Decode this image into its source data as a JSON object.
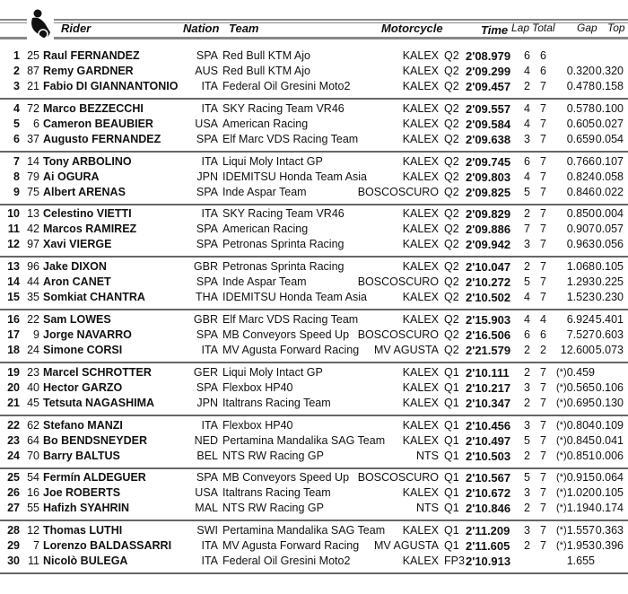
{
  "header": {
    "rider": "Rider",
    "nation": "Nation",
    "team": "Team",
    "motorcycle": "Motorcycle",
    "time": "Time",
    "lap": "Lap",
    "total": "Total",
    "gap": "Gap",
    "top": "Top",
    "logo_icon": "motorcycle-rider-icon"
  },
  "rows": [
    {
      "pos": "1",
      "num": "25",
      "name": "Raul FERNANDEZ",
      "nation": "SPA",
      "team": "Red Bull KTM Ajo",
      "moto": "KALEX",
      "session": "Q2",
      "time": "2'08.979",
      "lap": "6",
      "total": "6",
      "star": "",
      "gap": "",
      "top": ""
    },
    {
      "pos": "2",
      "num": "87",
      "name": "Remy GARDNER",
      "nation": "AUS",
      "team": "Red Bull KTM Ajo",
      "moto": "KALEX",
      "session": "Q2",
      "time": "2'09.299",
      "lap": "4",
      "total": "6",
      "star": "",
      "gap": "0.320",
      "top": "0.320"
    },
    {
      "pos": "3",
      "num": "21",
      "name": "Fabio DI GIANNANTONIO",
      "nation": "ITA",
      "team": "Federal Oil Gresini Moto2",
      "moto": "KALEX",
      "session": "Q2",
      "time": "2'09.457",
      "lap": "2",
      "total": "7",
      "star": "",
      "gap": "0.478",
      "top": "0.158"
    },
    {
      "pos": "4",
      "num": "72",
      "name": "Marco BEZZECCHI",
      "nation": "ITA",
      "team": "SKY Racing Team VR46",
      "moto": "KALEX",
      "session": "Q2",
      "time": "2'09.557",
      "lap": "4",
      "total": "7",
      "star": "",
      "gap": "0.578",
      "top": "0.100"
    },
    {
      "pos": "5",
      "num": "6",
      "name": "Cameron BEAUBIER",
      "nation": "USA",
      "team": "American Racing",
      "moto": "KALEX",
      "session": "Q2",
      "time": "2'09.584",
      "lap": "4",
      "total": "7",
      "star": "",
      "gap": "0.605",
      "top": "0.027"
    },
    {
      "pos": "6",
      "num": "37",
      "name": "Augusto FERNANDEZ",
      "nation": "SPA",
      "team": "Elf Marc VDS Racing Team",
      "moto": "KALEX",
      "session": "Q2",
      "time": "2'09.638",
      "lap": "3",
      "total": "7",
      "star": "",
      "gap": "0.659",
      "top": "0.054"
    },
    {
      "pos": "7",
      "num": "14",
      "name": "Tony ARBOLINO",
      "nation": "ITA",
      "team": "Liqui Moly Intact GP",
      "moto": "KALEX",
      "session": "Q2",
      "time": "2'09.745",
      "lap": "6",
      "total": "7",
      "star": "",
      "gap": "0.766",
      "top": "0.107"
    },
    {
      "pos": "8",
      "num": "79",
      "name": "Ai OGURA",
      "nation": "JPN",
      "team": "IDEMITSU Honda Team Asia",
      "moto": "KALEX",
      "session": "Q2",
      "time": "2'09.803",
      "lap": "4",
      "total": "7",
      "star": "",
      "gap": "0.824",
      "top": "0.058"
    },
    {
      "pos": "9",
      "num": "75",
      "name": "Albert ARENAS",
      "nation": "SPA",
      "team": "Inde Aspar Team",
      "moto": "BOSCOSCURO",
      "session": "Q2",
      "time": "2'09.825",
      "lap": "5",
      "total": "7",
      "star": "",
      "gap": "0.846",
      "top": "0.022"
    },
    {
      "pos": "10",
      "num": "13",
      "name": "Celestino VIETTI",
      "nation": "ITA",
      "team": "SKY Racing Team VR46",
      "moto": "KALEX",
      "session": "Q2",
      "time": "2'09.829",
      "lap": "2",
      "total": "7",
      "star": "",
      "gap": "0.850",
      "top": "0.004"
    },
    {
      "pos": "11",
      "num": "42",
      "name": "Marcos RAMIREZ",
      "nation": "SPA",
      "team": "American Racing",
      "moto": "KALEX",
      "session": "Q2",
      "time": "2'09.886",
      "lap": "7",
      "total": "7",
      "star": "",
      "gap": "0.907",
      "top": "0.057"
    },
    {
      "pos": "12",
      "num": "97",
      "name": "Xavi VIERGE",
      "nation": "SPA",
      "team": "Petronas Sprinta Racing",
      "moto": "KALEX",
      "session": "Q2",
      "time": "2'09.942",
      "lap": "3",
      "total": "7",
      "star": "",
      "gap": "0.963",
      "top": "0.056"
    },
    {
      "pos": "13",
      "num": "96",
      "name": "Jake DIXON",
      "nation": "GBR",
      "team": "Petronas Sprinta Racing",
      "moto": "KALEX",
      "session": "Q2",
      "time": "2'10.047",
      "lap": "2",
      "total": "7",
      "star": "",
      "gap": "1.068",
      "top": "0.105"
    },
    {
      "pos": "14",
      "num": "44",
      "name": "Aron CANET",
      "nation": "SPA",
      "team": "Inde Aspar Team",
      "moto": "BOSCOSCURO",
      "session": "Q2",
      "time": "2'10.272",
      "lap": "5",
      "total": "7",
      "star": "",
      "gap": "1.293",
      "top": "0.225"
    },
    {
      "pos": "15",
      "num": "35",
      "name": "Somkiat CHANTRA",
      "nation": "THA",
      "team": "IDEMITSU Honda Team Asia",
      "moto": "KALEX",
      "session": "Q2",
      "time": "2'10.502",
      "lap": "4",
      "total": "7",
      "star": "",
      "gap": "1.523",
      "top": "0.230"
    },
    {
      "pos": "16",
      "num": "22",
      "name": "Sam LOWES",
      "nation": "GBR",
      "team": "Elf Marc VDS Racing Team",
      "moto": "KALEX",
      "session": "Q2",
      "time": "2'15.903",
      "lap": "4",
      "total": "4",
      "star": "",
      "gap": "6.924",
      "top": "5.401"
    },
    {
      "pos": "17",
      "num": "9",
      "name": "Jorge NAVARRO",
      "nation": "SPA",
      "team": "MB Conveyors Speed Up",
      "moto": "BOSCOSCURO",
      "session": "Q2",
      "time": "2'16.506",
      "lap": "6",
      "total": "6",
      "star": "",
      "gap": "7.527",
      "top": "0.603"
    },
    {
      "pos": "18",
      "num": "24",
      "name": "Simone CORSI",
      "nation": "ITA",
      "team": "MV Agusta Forward Racing",
      "moto": "MV AGUSTA",
      "session": "Q2",
      "time": "2'21.579",
      "lap": "2",
      "total": "2",
      "star": "",
      "gap": "12.600",
      "top": "5.073"
    },
    {
      "pos": "19",
      "num": "23",
      "name": "Marcel SCHROTTER",
      "nation": "GER",
      "team": "Liqui Moly Intact GP",
      "moto": "KALEX",
      "session": "Q1",
      "time": "2'10.111",
      "lap": "2",
      "total": "7",
      "star": "(*)",
      "gap": "0.459",
      "top": ""
    },
    {
      "pos": "20",
      "num": "40",
      "name": "Hector GARZO",
      "nation": "SPA",
      "team": "Flexbox HP40",
      "moto": "KALEX",
      "session": "Q1",
      "time": "2'10.217",
      "lap": "3",
      "total": "7",
      "star": "(*)",
      "gap": "0.565",
      "top": "0.106"
    },
    {
      "pos": "21",
      "num": "45",
      "name": "Tetsuta NAGASHIMA",
      "nation": "JPN",
      "team": "Italtrans Racing Team",
      "moto": "KALEX",
      "session": "Q1",
      "time": "2'10.347",
      "lap": "2",
      "total": "7",
      "star": "(*)",
      "gap": "0.695",
      "top": "0.130"
    },
    {
      "pos": "22",
      "num": "62",
      "name": "Stefano MANZI",
      "nation": "ITA",
      "team": "Flexbox HP40",
      "moto": "KALEX",
      "session": "Q1",
      "time": "2'10.456",
      "lap": "3",
      "total": "7",
      "star": "(*)",
      "gap": "0.804",
      "top": "0.109"
    },
    {
      "pos": "23",
      "num": "64",
      "name": "Bo BENDSNEYDER",
      "nation": "NED",
      "team": "Pertamina Mandalika SAG Team",
      "moto": "KALEX",
      "session": "Q1",
      "time": "2'10.497",
      "lap": "5",
      "total": "7",
      "star": "(*)",
      "gap": "0.845",
      "top": "0.041"
    },
    {
      "pos": "24",
      "num": "70",
      "name": "Barry BALTUS",
      "nation": "BEL",
      "team": "NTS RW Racing GP",
      "moto": "NTS",
      "session": "Q1",
      "time": "2'10.503",
      "lap": "2",
      "total": "7",
      "star": "(*)",
      "gap": "0.851",
      "top": "0.006"
    },
    {
      "pos": "25",
      "num": "54",
      "name": "Fermín ALDEGUER",
      "nation": "SPA",
      "team": "MB Conveyors Speed Up",
      "moto": "BOSCOSCURO",
      "session": "Q1",
      "time": "2'10.567",
      "lap": "5",
      "total": "7",
      "star": "(*)",
      "gap": "0.915",
      "top": "0.064"
    },
    {
      "pos": "26",
      "num": "16",
      "name": "Joe ROBERTS",
      "nation": "USA",
      "team": "Italtrans Racing Team",
      "moto": "KALEX",
      "session": "Q1",
      "time": "2'10.672",
      "lap": "3",
      "total": "7",
      "star": "(*)",
      "gap": "1.020",
      "top": "0.105"
    },
    {
      "pos": "27",
      "num": "55",
      "name": "Hafizh SYAHRIN",
      "nation": "MAL",
      "team": "NTS RW Racing GP",
      "moto": "NTS",
      "session": "Q1",
      "time": "2'10.846",
      "lap": "2",
      "total": "7",
      "star": "(*)",
      "gap": "1.194",
      "top": "0.174"
    },
    {
      "pos": "28",
      "num": "12",
      "name": "Thomas LUTHI",
      "nation": "SWI",
      "team": "Pertamina Mandalika SAG Team",
      "moto": "KALEX",
      "session": "Q1",
      "time": "2'11.209",
      "lap": "3",
      "total": "7",
      "star": "(*)",
      "gap": "1.557",
      "top": "0.363"
    },
    {
      "pos": "29",
      "num": "7",
      "name": "Lorenzo BALDASSARRI",
      "nation": "ITA",
      "team": "MV Agusta Forward Racing",
      "moto": "MV AGUSTA",
      "session": "Q1",
      "time": "2'11.605",
      "lap": "2",
      "total": "7",
      "star": "(*)",
      "gap": "1.953",
      "top": "0.396"
    },
    {
      "pos": "30",
      "num": "11",
      "name": "Nicolò BULEGA",
      "nation": "ITA",
      "team": "Federal Oil Gresini Moto2",
      "moto": "KALEX",
      "session": "FP3",
      "time": "2'10.913",
      "lap": "",
      "total": "",
      "star": "",
      "gap": "1.655",
      "top": ""
    }
  ]
}
